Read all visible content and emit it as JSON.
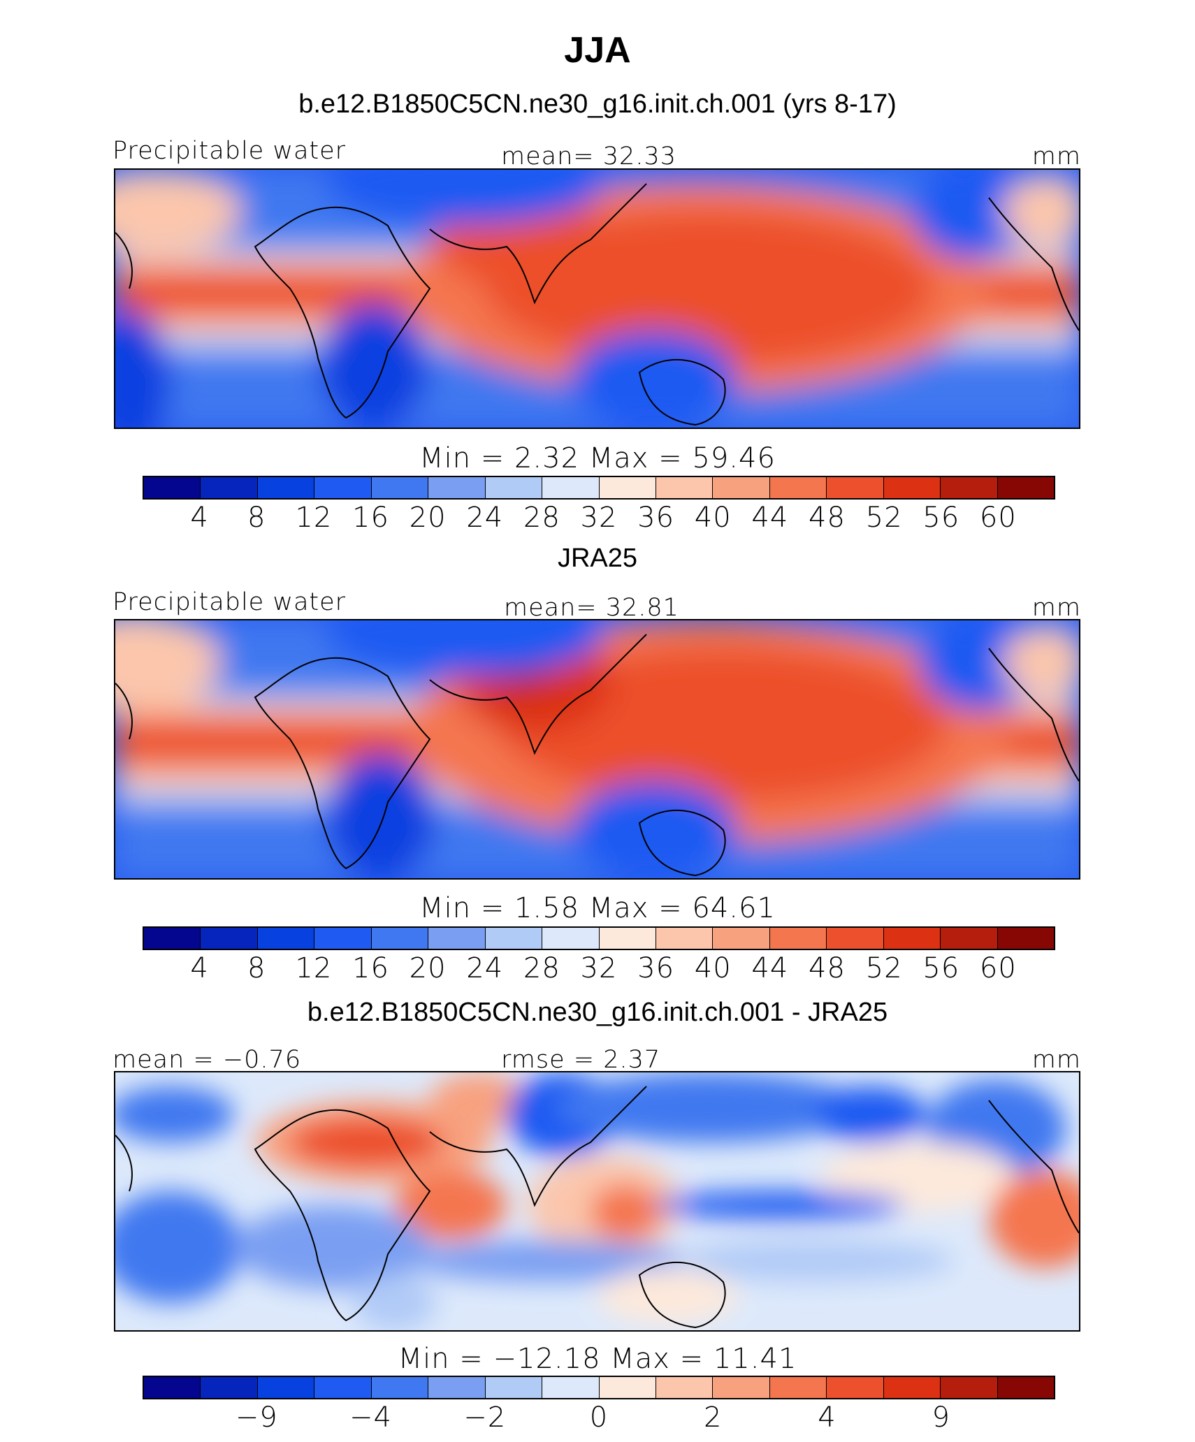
{
  "title": "JJA",
  "panels": [
    {
      "title": "b.e12.B1850C5CN.ne30_g16.init.ch.001 (yrs 8-17)",
      "left_label": "Precipitable water",
      "center_label": "mean=   32.33",
      "right_label": "mm",
      "minmax": "Min  =     2.32  Max  =    59.46",
      "ticks": [
        "4",
        "8",
        "12",
        "16",
        "20",
        "24",
        "28",
        "32",
        "36",
        "40",
        "44",
        "48",
        "52",
        "56",
        "60"
      ]
    },
    {
      "title": "JRA25",
      "left_label": "Precipitable water",
      "center_label": "mean=   32.81",
      "right_label": "mm",
      "minmax": "Min  =     1.58  Max  =    64.61",
      "ticks": [
        "4",
        "8",
        "12",
        "16",
        "20",
        "24",
        "28",
        "32",
        "36",
        "40",
        "44",
        "48",
        "52",
        "56",
        "60"
      ]
    },
    {
      "title": "b.e12.B1850C5CN.ne30_g16.init.ch.001 - JRA25",
      "left_label": "mean  =   −0.76",
      "center_label": "rmse  =     2.37",
      "right_label": "mm",
      "minmax": "Min  =  −12.18  Max  =    11.41",
      "ticks": [
        "−9",
        "−4",
        "−2",
        "0",
        "2",
        "4",
        "9"
      ]
    }
  ],
  "colormap": [
    "#05068f",
    "#0525bd",
    "#0741e0",
    "#1f5af2",
    "#3f78f0",
    "#7a9ff2",
    "#b1cbf7",
    "#dde9fb",
    "#fde9db",
    "#fbc6ac",
    "#f8a17f",
    "#f4764f",
    "#ec502c",
    "#dc3213",
    "#b51d0c",
    "#870705"
  ]
}
